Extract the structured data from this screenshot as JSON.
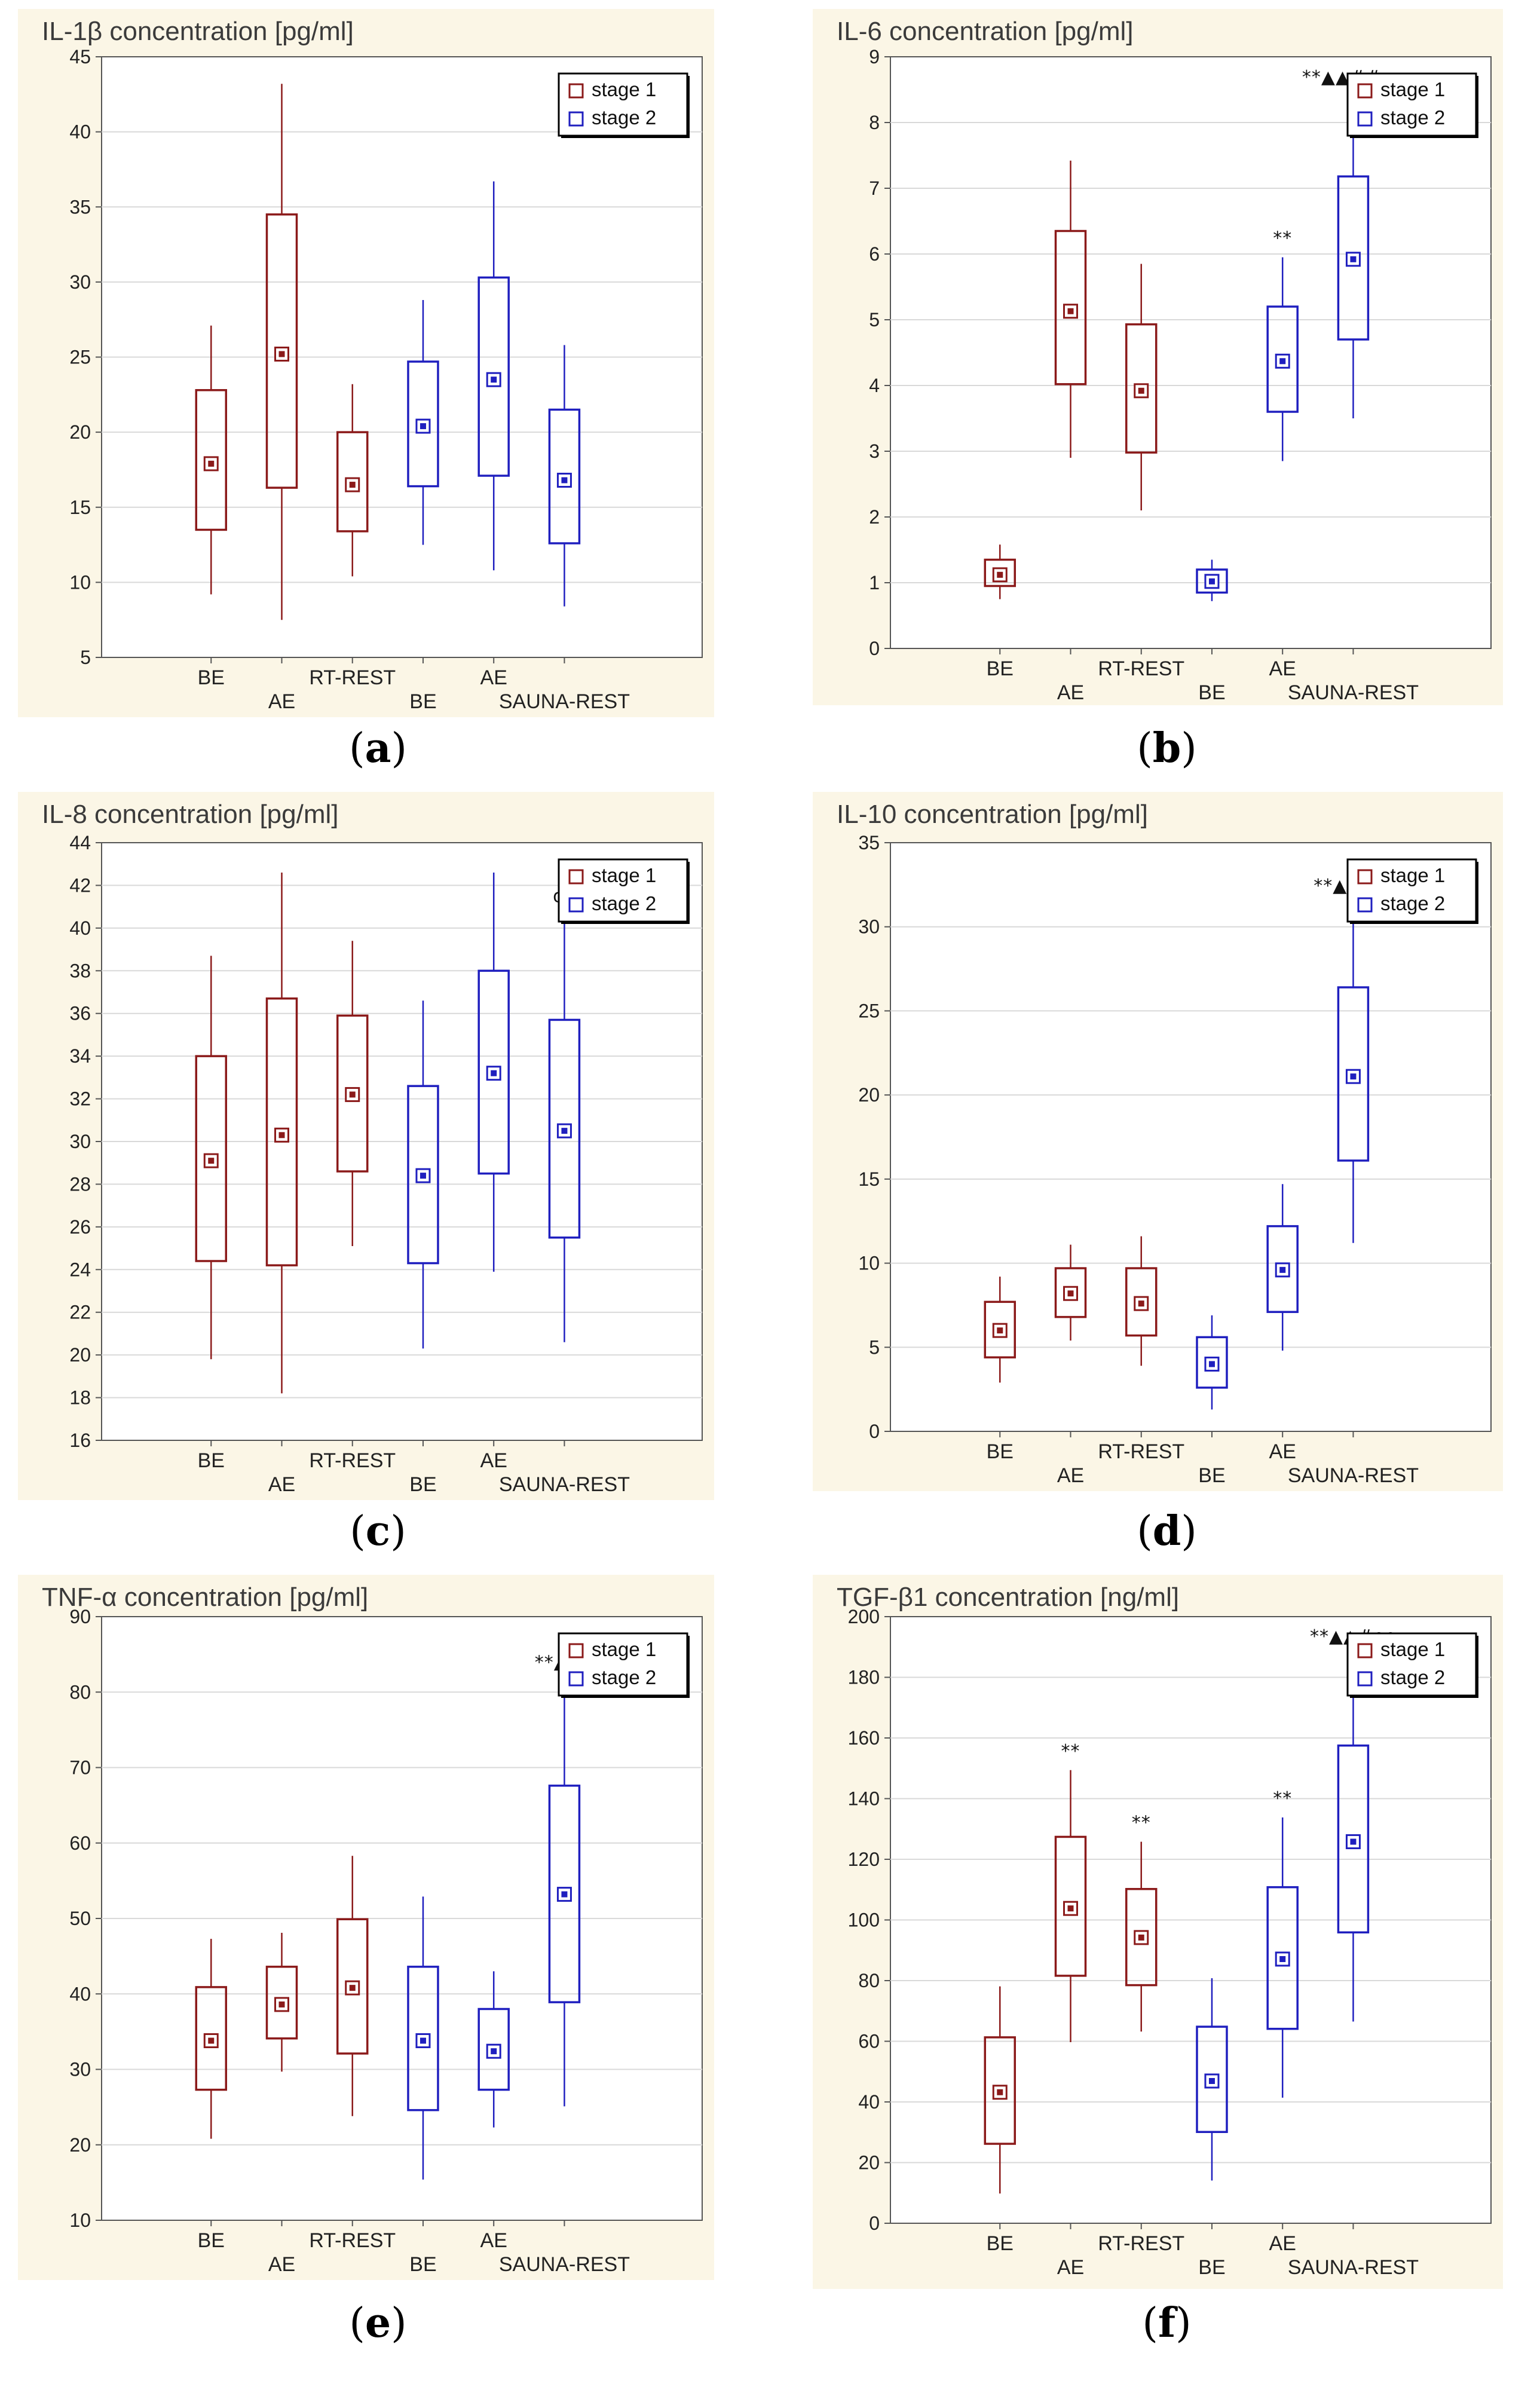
{
  "figure": {
    "colors": {
      "stage1": "#8b1a1a",
      "stage2": "#1f1fbf",
      "bottom_band": "#fbf6e6",
      "grid": "#d9d9d9"
    }
  },
  "chart_data": [
    {
      "type": "box",
      "panel": "a",
      "title": "IL-1β concentration [pg/ml]",
      "ylim": [
        5,
        45
      ],
      "yticks": [
        5,
        10,
        15,
        20,
        25,
        30,
        35,
        40,
        45
      ],
      "legend": {
        "position": "top-right",
        "entries": [
          "stage 1",
          "stage 2"
        ]
      },
      "categories": [
        {
          "label": "BE",
          "row": 1
        },
        {
          "label": "AE",
          "row": 2
        },
        {
          "label": "RT-REST",
          "row": 1
        },
        {
          "label": "BE",
          "row": 2
        },
        {
          "label": "AE",
          "row": 1
        },
        {
          "label": "SAUNA-REST",
          "row": 2
        }
      ],
      "series": [
        {
          "name": "stage 1",
          "boxes": [
            {
              "min": 9.2,
              "q1": 13.5,
              "mean": 17.9,
              "q3": 22.8,
              "max": 27.1,
              "sig": ""
            },
            {
              "min": 7.5,
              "q1": 16.3,
              "mean": 25.2,
              "q3": 34.5,
              "max": 43.2,
              "sig": ""
            },
            {
              "min": 10.4,
              "q1": 13.4,
              "mean": 16.5,
              "q3": 20,
              "max": 23.2,
              "sig": ""
            }
          ]
        },
        {
          "name": "stage 2",
          "boxes": [
            {
              "min": 12.5,
              "q1": 16.4,
              "mean": 20.4,
              "q3": 24.7,
              "max": 28.8,
              "sig": ""
            },
            {
              "min": 10.8,
              "q1": 17.1,
              "mean": 23.5,
              "q3": 30.3,
              "max": 36.7,
              "sig": ""
            },
            {
              "min": 8.4,
              "q1": 12.6,
              "mean": 16.8,
              "q3": 21.5,
              "max": 25.8,
              "sig": ""
            }
          ]
        }
      ]
    },
    {
      "type": "box",
      "panel": "b",
      "title": "IL-6 concentration [pg/ml]",
      "ylim": [
        0,
        9
      ],
      "yticks": [
        0,
        1,
        2,
        3,
        4,
        5,
        6,
        7,
        8,
        9
      ],
      "legend": {
        "position": "top-right",
        "entries": [
          "stage 1",
          "stage 2"
        ]
      },
      "categories": [
        {
          "label": "BE",
          "row": 1
        },
        {
          "label": "AE",
          "row": 2
        },
        {
          "label": "RT-REST",
          "row": 1
        },
        {
          "label": "BE",
          "row": 2
        },
        {
          "label": "AE",
          "row": 1
        },
        {
          "label": "SAUNA-REST",
          "row": 2
        }
      ],
      "series": [
        {
          "name": "stage 1",
          "boxes": [
            {
              "min": 0.75,
              "q1": 0.95,
              "mean": 1.12,
              "q3": 1.35,
              "max": 1.58,
              "sig": ""
            },
            {
              "min": 2.9,
              "q1": 4.02,
              "mean": 5.13,
              "q3": 6.35,
              "max": 7.42,
              "sig": ""
            },
            {
              "min": 2.1,
              "q1": 2.98,
              "mean": 3.92,
              "q3": 4.93,
              "max": 5.85,
              "sig": ""
            }
          ]
        },
        {
          "name": "stage 2",
          "boxes": [
            {
              "min": 0.72,
              "q1": 0.85,
              "mean": 1.02,
              "q3": 1.2,
              "max": 1.35,
              "sig": ""
            },
            {
              "min": 2.85,
              "q1": 3.6,
              "mean": 4.37,
              "q3": 5.2,
              "max": 5.95,
              "sig": "**"
            },
            {
              "min": 3.5,
              "q1": 4.7,
              "mean": 5.92,
              "q3": 7.18,
              "max": 8.4,
              "sig": "**▲▲##oo"
            }
          ]
        }
      ]
    },
    {
      "type": "box",
      "panel": "c",
      "title": "IL-8 concentration [pg/ml]",
      "ylim": [
        16,
        44
      ],
      "yticks": [
        16,
        18,
        20,
        22,
        24,
        26,
        28,
        30,
        32,
        34,
        36,
        38,
        40,
        42,
        44
      ],
      "legend": {
        "position": "top-right",
        "entries": [
          "stage 1",
          "stage 2"
        ]
      },
      "categories": [
        {
          "label": "BE",
          "row": 1
        },
        {
          "label": "AE",
          "row": 2
        },
        {
          "label": "RT-REST",
          "row": 1
        },
        {
          "label": "BE",
          "row": 2
        },
        {
          "label": "AE",
          "row": 1
        },
        {
          "label": "SAUNA-REST",
          "row": 2
        }
      ],
      "series": [
        {
          "name": "stage 1",
          "boxes": [
            {
              "min": 19.8,
              "q1": 24.4,
              "mean": 29.1,
              "q3": 34,
              "max": 38.7,
              "sig": ""
            },
            {
              "min": 18.2,
              "q1": 24.2,
              "mean": 30.3,
              "q3": 36.7,
              "max": 42.6,
              "sig": ""
            },
            {
              "min": 25.1,
              "q1": 28.6,
              "mean": 32.2,
              "q3": 35.9,
              "max": 39.4,
              "sig": ""
            }
          ]
        },
        {
          "name": "stage 2",
          "boxes": [
            {
              "min": 20.3,
              "q1": 24.3,
              "mean": 28.4,
              "q3": 32.6,
              "max": 36.6,
              "sig": ""
            },
            {
              "min": 23.9,
              "q1": 28.5,
              "mean": 33.2,
              "q3": 38,
              "max": 42.6,
              "sig": ""
            },
            {
              "min": 20.6,
              "q1": 25.5,
              "mean": 30.5,
              "q3": 35.7,
              "max": 40.6,
              "sig": "oo"
            }
          ]
        }
      ]
    },
    {
      "type": "box",
      "panel": "d",
      "title": "IL-10 concentration [pg/ml]",
      "ylim": [
        0,
        35
      ],
      "yticks": [
        0,
        5,
        10,
        15,
        20,
        25,
        30,
        35
      ],
      "legend": {
        "position": "top-right",
        "entries": [
          "stage 1",
          "stage 2"
        ]
      },
      "categories": [
        {
          "label": "BE",
          "row": 1
        },
        {
          "label": "AE",
          "row": 2
        },
        {
          "label": "RT-REST",
          "row": 1
        },
        {
          "label": "BE",
          "row": 2
        },
        {
          "label": "AE",
          "row": 1
        },
        {
          "label": "SAUNA-REST",
          "row": 2
        }
      ],
      "series": [
        {
          "name": "stage 1",
          "boxes": [
            {
              "min": 2.9,
              "q1": 4.4,
              "mean": 6,
              "q3": 7.7,
              "max": 9.2,
              "sig": ""
            },
            {
              "min": 5.4,
              "q1": 6.8,
              "mean": 8.2,
              "q3": 9.7,
              "max": 11.1,
              "sig": ""
            },
            {
              "min": 3.9,
              "q1": 5.7,
              "mean": 7.6,
              "q3": 9.7,
              "max": 11.6,
              "sig": ""
            }
          ]
        },
        {
          "name": "stage 2",
          "boxes": [
            {
              "min": 1.3,
              "q1": 2.6,
              "mean": 4,
              "q3": 5.6,
              "max": 6.9,
              "sig": ""
            },
            {
              "min": 4.8,
              "q1": 7.1,
              "mean": 9.6,
              "q3": 12.2,
              "max": 14.7,
              "sig": ""
            },
            {
              "min": 11.2,
              "q1": 16.1,
              "mean": 21.1,
              "q3": 26.4,
              "max": 31.3,
              "sig": "**▲▲##"
            }
          ]
        }
      ]
    },
    {
      "type": "box",
      "panel": "e",
      "title": "TNF-α concentration [pg/ml]",
      "ylim": [
        10,
        90
      ],
      "yticks": [
        10,
        20,
        30,
        40,
        50,
        60,
        70,
        80,
        90
      ],
      "legend": {
        "position": "top-right",
        "entries": [
          "stage 1",
          "stage 2"
        ]
      },
      "categories": [
        {
          "label": "BE",
          "row": 1
        },
        {
          "label": "AE",
          "row": 2
        },
        {
          "label": "RT-REST",
          "row": 1
        },
        {
          "label": "BE",
          "row": 2
        },
        {
          "label": "AE",
          "row": 1
        },
        {
          "label": "SAUNA-REST",
          "row": 2
        }
      ],
      "series": [
        {
          "name": "stage 1",
          "boxes": [
            {
              "min": 20.8,
              "q1": 27.3,
              "mean": 33.8,
              "q3": 40.9,
              "max": 47.3,
              "sig": ""
            },
            {
              "min": 29.7,
              "q1": 34.1,
              "mean": 38.6,
              "q3": 43.6,
              "max": 48.1,
              "sig": ""
            },
            {
              "min": 23.8,
              "q1": 32.1,
              "mean": 40.8,
              "q3": 49.9,
              "max": 58.3,
              "sig": ""
            }
          ]
        },
        {
          "name": "stage 2",
          "boxes": [
            {
              "min": 15.4,
              "q1": 24.6,
              "mean": 33.8,
              "q3": 43.6,
              "max": 52.9,
              "sig": ""
            },
            {
              "min": 22.3,
              "q1": 27.3,
              "mean": 32.4,
              "q3": 38,
              "max": 43,
              "sig": ""
            },
            {
              "min": 25.1,
              "q1": 38.9,
              "mean": 53.2,
              "q3": 67.6,
              "max": 81.4,
              "sig": "**▲▲o"
            }
          ]
        }
      ]
    },
    {
      "type": "box",
      "panel": "f",
      "title": "TGF-β1 concentration [ng/ml]",
      "ylim": [
        0,
        200
      ],
      "yticks": [
        0,
        20,
        40,
        60,
        80,
        100,
        120,
        140,
        160,
        180,
        200
      ],
      "legend": {
        "position": "top-right",
        "entries": [
          "stage 1",
          "stage 2"
        ]
      },
      "categories": [
        {
          "label": "BE",
          "row": 1
        },
        {
          "label": "AE",
          "row": 2
        },
        {
          "label": "RT-REST",
          "row": 1
        },
        {
          "label": "BE",
          "row": 2
        },
        {
          "label": "AE",
          "row": 1
        },
        {
          "label": "SAUNA-REST",
          "row": 2
        }
      ],
      "series": [
        {
          "name": "stage 1",
          "boxes": [
            {
              "min": 9.8,
              "q1": 26.2,
              "mean": 43.2,
              "q3": 61.3,
              "max": 78.1,
              "sig": ""
            },
            {
              "min": 59.7,
              "q1": 81.6,
              "mean": 103.8,
              "q3": 127.4,
              "max": 149.4,
              "sig": "**"
            },
            {
              "min": 63.2,
              "q1": 78.5,
              "mean": 94.2,
              "q3": 110.2,
              "max": 125.8,
              "sig": "**"
            }
          ]
        },
        {
          "name": "stage 2",
          "boxes": [
            {
              "min": 14.1,
              "q1": 30.1,
              "mean": 46.9,
              "q3": 64.8,
              "max": 80.8,
              "sig": ""
            },
            {
              "min": 41.4,
              "q1": 64.1,
              "mean": 87.1,
              "q3": 110.8,
              "max": 133.8,
              "sig": "**"
            },
            {
              "min": 66.5,
              "q1": 95.9,
              "mean": 125.8,
              "q3": 157.5,
              "max": 187.2,
              "sig": "**▲▲#oo"
            }
          ]
        }
      ]
    }
  ],
  "panel_labels": [
    "a",
    "b",
    "c",
    "d",
    "e",
    "f"
  ]
}
